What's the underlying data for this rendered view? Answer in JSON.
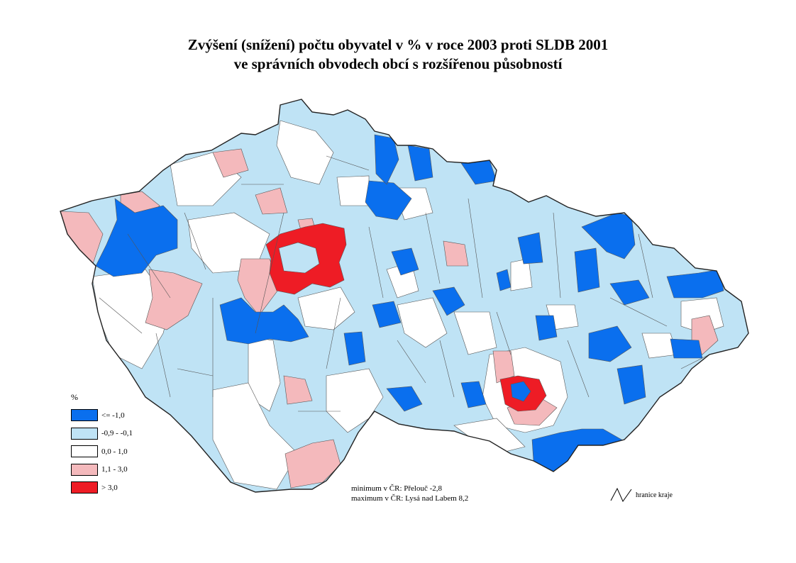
{
  "title": {
    "line1": "Zvýšení (snížení) počtu obyvatel v % v roce 2003 proti SLDB 2001",
    "line2": "ve správních obvodech obcí s rozšířenou působností"
  },
  "legend": {
    "title": "%",
    "items": [
      {
        "label": "<= -1,0",
        "color": "#0a6fee"
      },
      {
        "label": "-0,9  -  -0,1",
        "color": "#bfe3f5"
      },
      {
        "label": "0,0  -  1,0",
        "color": "#ffffff"
      },
      {
        "label": "1,1  -  3,0",
        "color": "#f4b9bc"
      },
      {
        "label": "> 3,0",
        "color": "#ee1c25"
      }
    ]
  },
  "notes": {
    "minimum": "minimum v ČR: Přelouč -2,8",
    "maximum": "maximum v ČR: Lysá nad Labem 8,2"
  },
  "border_legend": {
    "label": "hranice kraje",
    "icon": "border-line-icon"
  }
}
